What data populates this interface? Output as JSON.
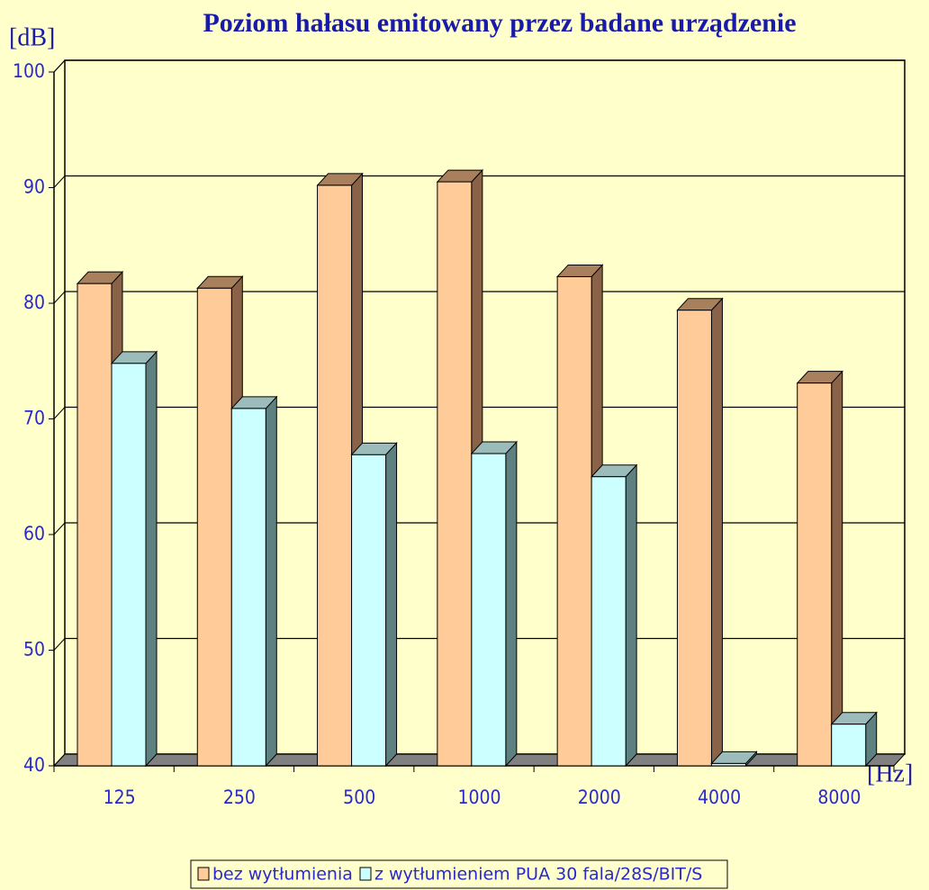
{
  "chart_data": {
    "type": "bar3d",
    "title": "Poziom hałasu emitowany przez badane urządzenie",
    "y_label": "[dB]",
    "x_label": "[Hz]",
    "categories": [
      "125",
      "250",
      "500",
      "1000",
      "2000",
      "4000",
      "8000"
    ],
    "series": [
      {
        "name": "bez wytłumienia",
        "color": "#ffcc99",
        "values": [
          81.7,
          81.3,
          90.2,
          90.5,
          82.3,
          79.4,
          73.1
        ]
      },
      {
        "name": "z wytłumieniem PUA 30 fala/28S/BIT/S",
        "color": "#ccffff",
        "values": [
          74.8,
          70.9,
          66.9,
          67.0,
          65.0,
          40.2,
          43.6
        ]
      }
    ],
    "ylim": [
      40,
      100
    ],
    "yticks": [
      40,
      50,
      60,
      70,
      80,
      90,
      100
    ],
    "grid": true
  }
}
